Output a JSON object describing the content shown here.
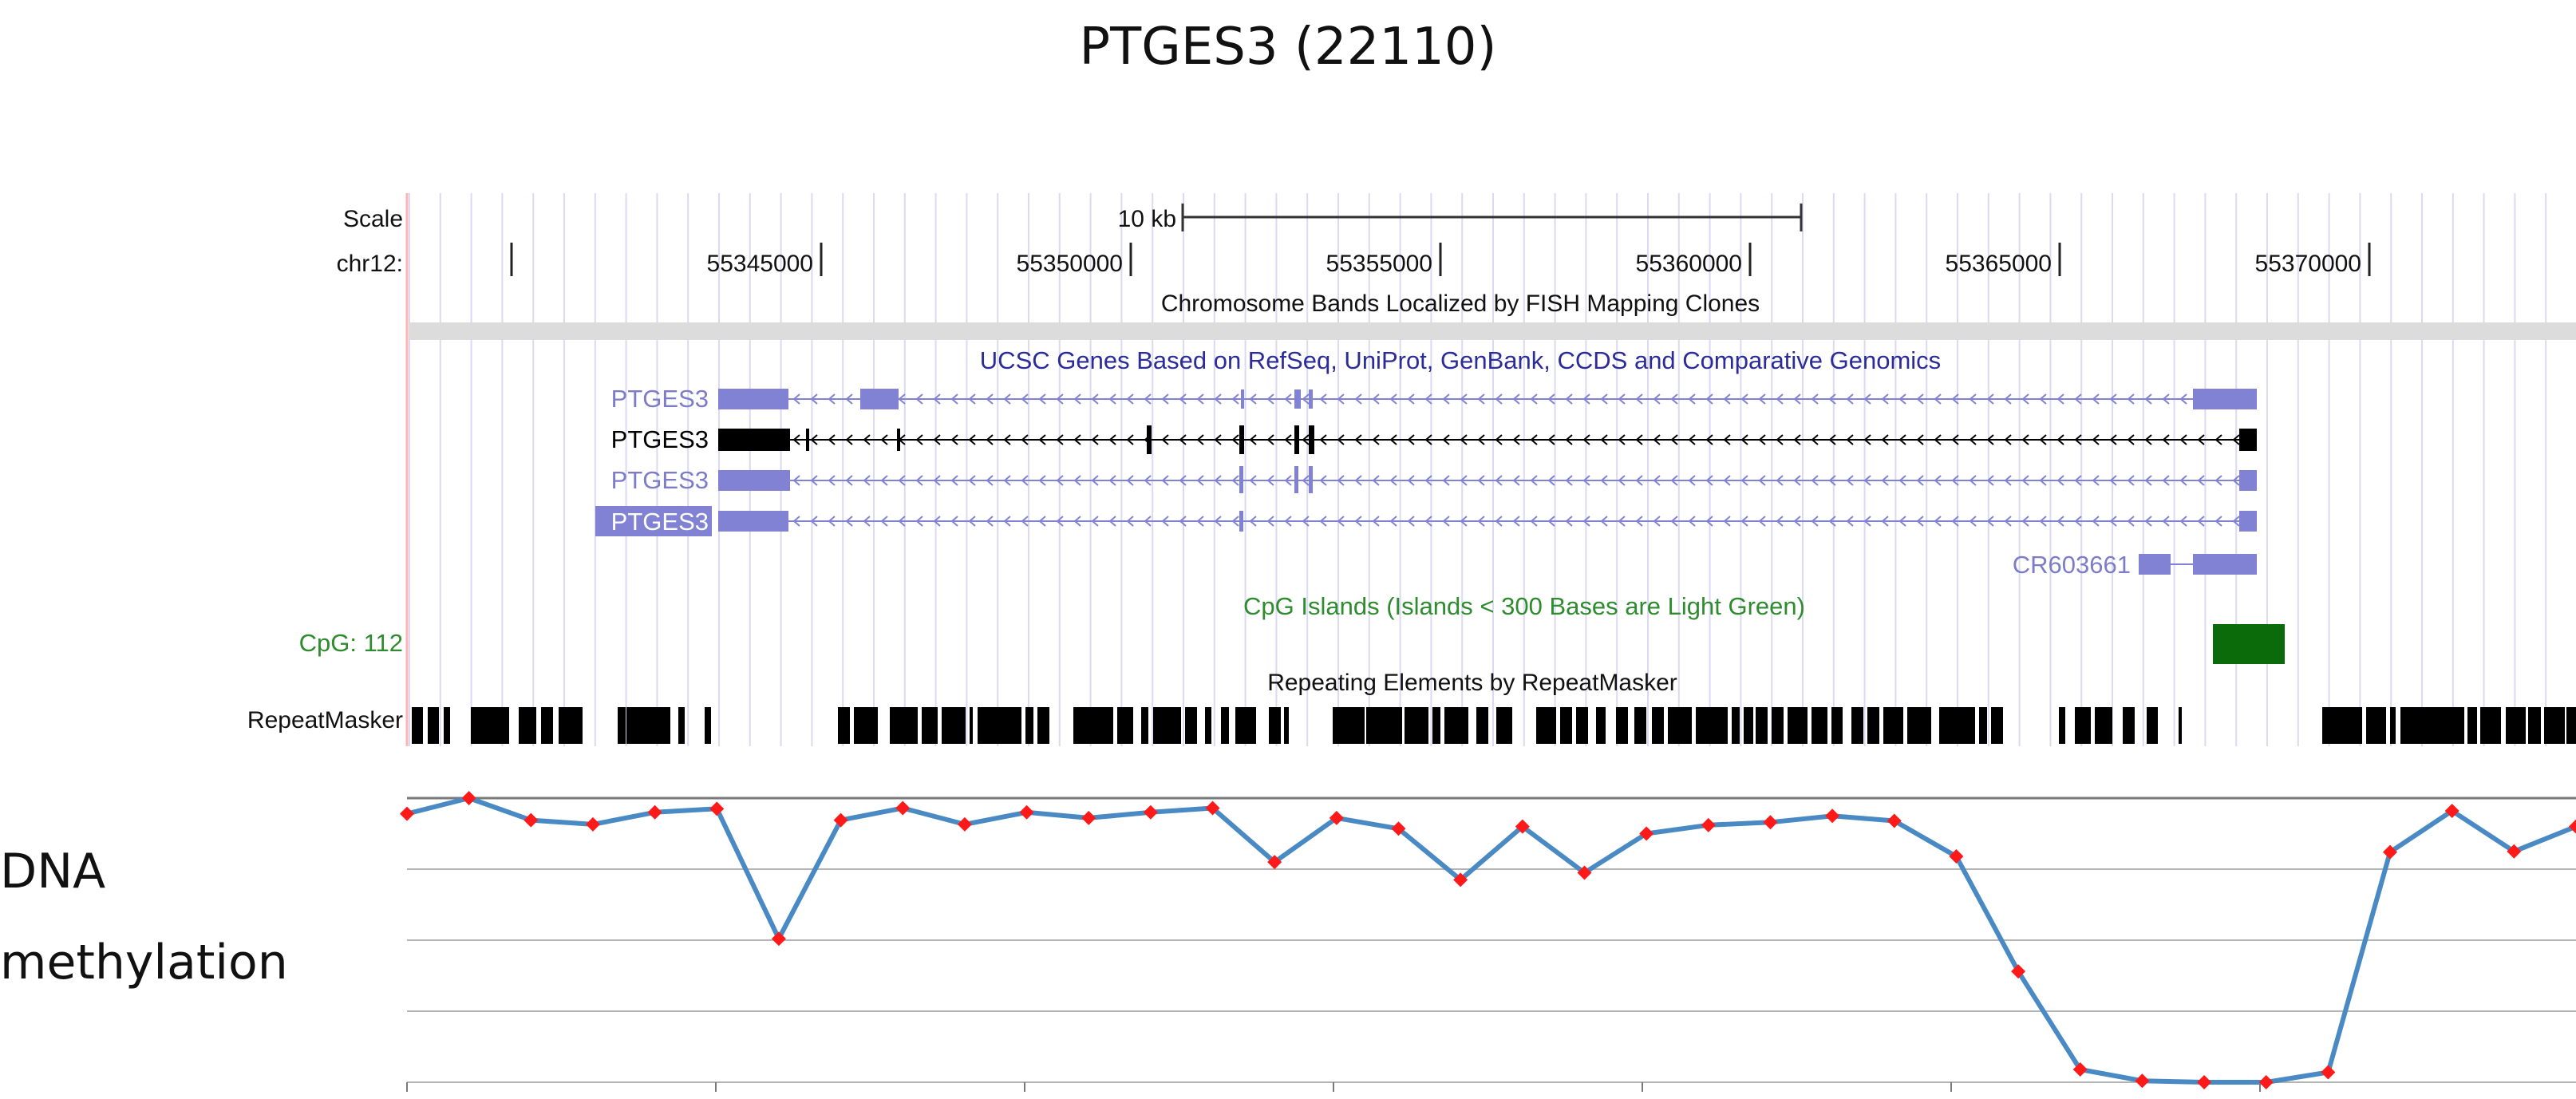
{
  "figure": {
    "title": "PTGES3 (22110)",
    "side_label_line1": "DNA",
    "side_label_line2": "methylation"
  },
  "browser": {
    "scale_label": "Scale",
    "scale_bar_label": "10 kb",
    "chrom_label": "chr12:",
    "positions": [
      "55345000",
      "55350000",
      "55355000",
      "55360000",
      "55365000",
      "55370000"
    ],
    "bands_track_label": "Chromosome Bands Localized by FISH Mapping Clones",
    "genes_track_label": "UCSC Genes Based on RefSeq, UniProt, GenBank, CCDS and Comparative Genomics",
    "genes": [
      {
        "name": "PTGES3"
      },
      {
        "name": "PTGES3"
      },
      {
        "name": "PTGES3"
      },
      {
        "name": "PTGES3"
      }
    ],
    "cr_label": "CR603661",
    "cpg_track_label": "CpG Islands (Islands < 300 Bases are Light Green)",
    "cpg_label": "CpG: 112",
    "repeat_track_label": "Repeating Elements by RepeatMasker",
    "repeat_label": "RepeatMasker",
    "colors": {
      "gene_blue": "#8282d4",
      "gene_black": "#000000",
      "cpg_green": "#0b6b0b",
      "cpg_text": "#2e8b2e",
      "track_title_blue": "#2b2b99"
    }
  },
  "chart_data": {
    "type": "line",
    "title": "",
    "xlabel": "",
    "ylabel": "",
    "ylim": [
      0,
      4
    ],
    "grid": true,
    "x": [
      1,
      2,
      3,
      4,
      5,
      6,
      7,
      8,
      9,
      10,
      11,
      12,
      13,
      14,
      15,
      16,
      17,
      18,
      19,
      20,
      21,
      22,
      23,
      24,
      25,
      26,
      27,
      28,
      29,
      30,
      31,
      32,
      33,
      34,
      35,
      36
    ],
    "series": [
      {
        "values": [
          3.78,
          4.0,
          3.69,
          3.63,
          3.8,
          3.85,
          2.02,
          3.69,
          3.86,
          3.63,
          3.8,
          3.72,
          3.8,
          3.86,
          3.1,
          3.72,
          3.57,
          2.85,
          3.6,
          2.95,
          3.5,
          3.62,
          3.66,
          3.75,
          3.68,
          3.18,
          1.56,
          0.18,
          0.02,
          0.0,
          0.0,
          0.14,
          3.24,
          3.82,
          3.25,
          3.6
        ]
      }
    ],
    "colors": {
      "line": "#4a8ac4",
      "marker": "#ff1a1a",
      "grid": "#b4b4b4"
    }
  }
}
